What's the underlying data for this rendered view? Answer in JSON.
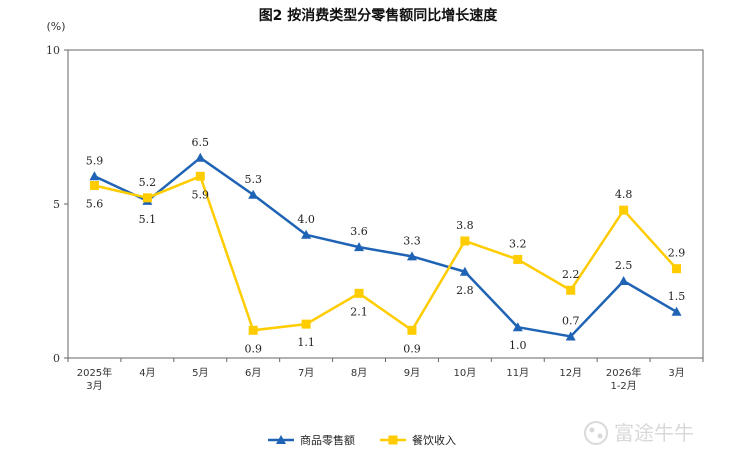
{
  "chart_data": {
    "type": "line",
    "title": "图2  按消费类型分零售额同比增长速度",
    "unit_label": "(%)",
    "categories": [
      [
        "2025年",
        "3月"
      ],
      [
        "4月"
      ],
      [
        "5月"
      ],
      [
        "6月"
      ],
      [
        "7月"
      ],
      [
        "8月"
      ],
      [
        "9月"
      ],
      [
        "10月"
      ],
      [
        "11月"
      ],
      [
        "12月"
      ],
      [
        "2026年",
        "1-2月"
      ],
      [
        "3月"
      ]
    ],
    "ylim": [
      0,
      10
    ],
    "yticks": [
      "0",
      "5",
      "10"
    ],
    "grid": false,
    "legend_position": "bottom",
    "series": [
      {
        "name": "商品零售额",
        "color": "#1f63b5",
        "marker": "triangle",
        "values": [
          5.9,
          5.1,
          6.5,
          5.3,
          4.0,
          3.6,
          3.3,
          2.8,
          1.0,
          0.7,
          2.5,
          1.5
        ],
        "labels": [
          "5.9",
          "5.1",
          "6.5",
          "5.3",
          "4.0",
          "3.6",
          "3.3",
          "2.8",
          "1.0",
          "0.7",
          "2.5",
          "1.5"
        ],
        "label_side": [
          "above",
          "below",
          "above",
          "above",
          "above",
          "above",
          "above",
          "below",
          "below",
          "above",
          "above",
          "above"
        ]
      },
      {
        "name": "餐饮收入",
        "color": "#ffcc00",
        "marker": "square",
        "values": [
          5.6,
          5.2,
          5.9,
          0.9,
          1.1,
          2.1,
          0.9,
          3.8,
          3.2,
          2.2,
          4.8,
          2.9
        ],
        "labels": [
          "5.6",
          "5.2",
          "5.9",
          "0.9",
          "1.1",
          "2.1",
          "0.9",
          "3.8",
          "3.2",
          "2.2",
          "4.8",
          "2.9"
        ],
        "label_side": [
          "below",
          "above",
          "below",
          "below",
          "below",
          "below",
          "below",
          "above",
          "above",
          "above",
          "above",
          "above"
        ]
      }
    ]
  },
  "watermark": {
    "text": "富途牛牛",
    "icon": "futu-logo-icon"
  }
}
